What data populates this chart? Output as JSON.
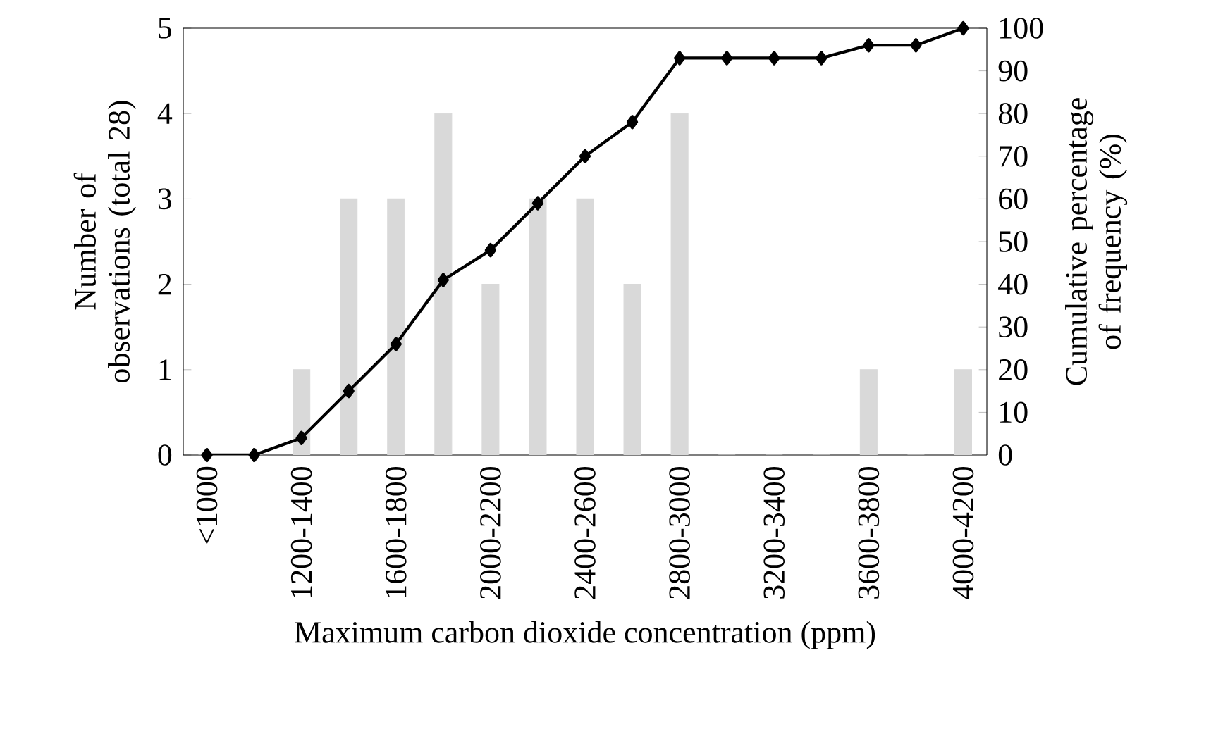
{
  "chart_data": {
    "type": "bar",
    "xlabel": "Maximum carbon dioxide concentration (ppm)",
    "ylabel": "Number of observations (total 28)",
    "y2label": "Cumulative percentage of frequency (%)",
    "categories": [
      "<1000",
      null,
      "1200-1400",
      null,
      "1600-1800",
      null,
      "2000-2200",
      null,
      "2400-2600",
      null,
      "2800-3000",
      null,
      "3200-3400",
      null,
      "3600-3800",
      null,
      "4000-4200"
    ],
    "series": [
      {
        "color": "#d9d9d9",
        "values": [
          0,
          0,
          1,
          3,
          3,
          4,
          2,
          3,
          3,
          2,
          4,
          0,
          0,
          0,
          1,
          0,
          1
        ]
      },
      {
        "type": "line",
        "axis": "y2",
        "color": "#000000",
        "marker": "diamond",
        "line_style": "solid",
        "values": [
          0,
          0,
          4,
          15,
          26,
          41,
          48,
          59,
          70,
          78,
          93,
          93,
          93,
          93,
          96,
          96,
          100
        ]
      }
    ],
    "ylim": [
      0,
      5
    ],
    "yticks": [
      0,
      1,
      2,
      3,
      4,
      5
    ],
    "y2lim": [
      0,
      100
    ],
    "y2ticks": [
      0,
      10,
      20,
      30,
      40,
      50,
      60,
      70,
      80,
      90,
      100
    ],
    "grid": false
  }
}
